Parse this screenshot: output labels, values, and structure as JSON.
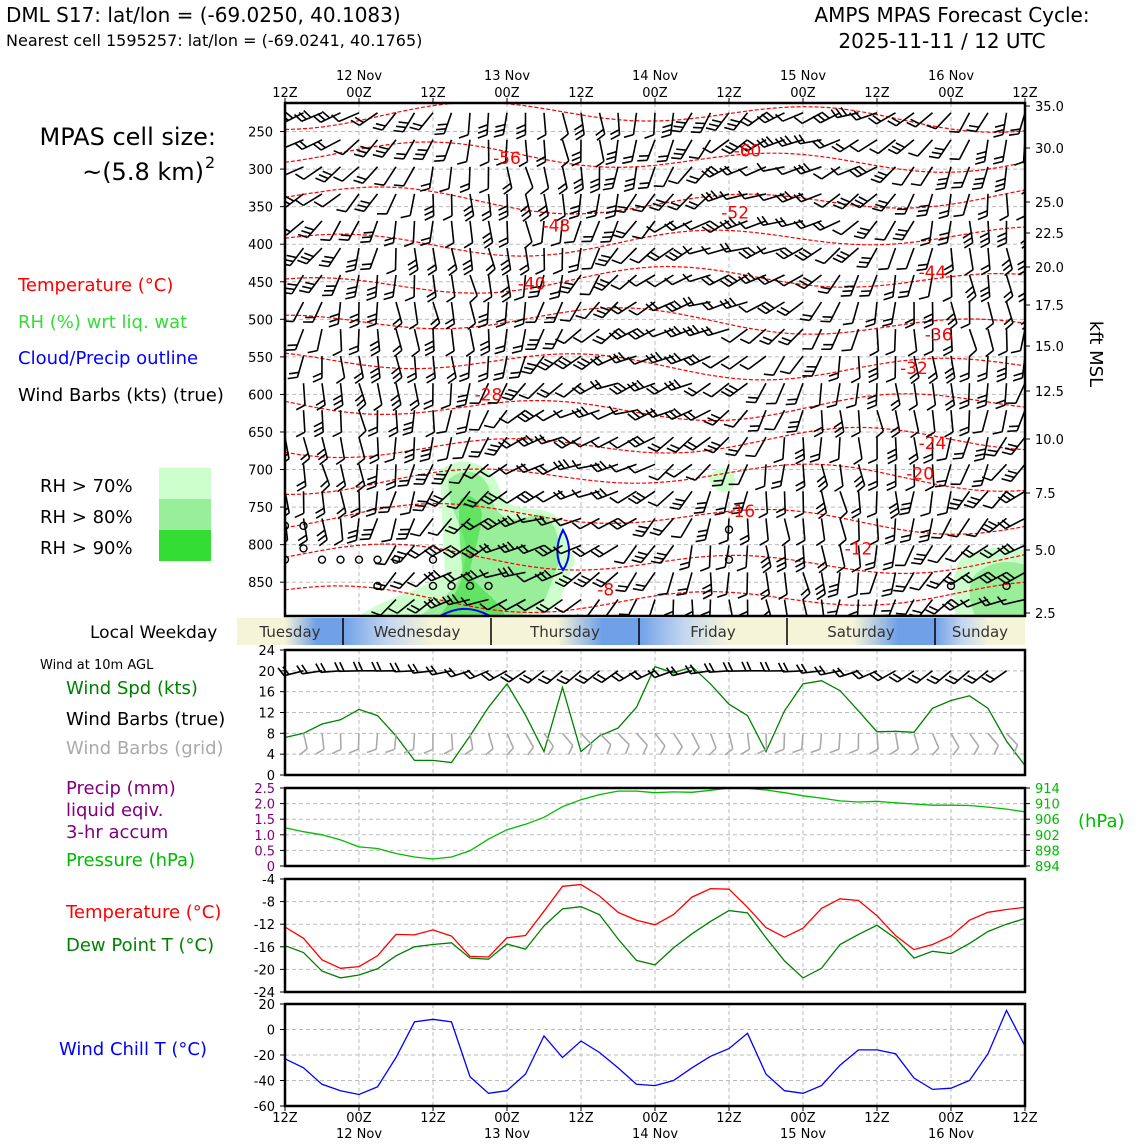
{
  "header": {
    "station": "DML S17: lat/lon = (-69.0250, 40.1083)",
    "nearest": "Nearest cell 1595257: lat/lon = (-69.0241, 40.1765)",
    "cycle_line1": "AMPS MPAS Forecast Cycle:",
    "cycle_line2": "2025-11-11 / 12 UTC"
  },
  "cell_size": {
    "line1": "MPAS cell size:",
    "line2": "~(5.8 km)",
    "sup": "2"
  },
  "legend": {
    "temperature": "Temperature (°C)",
    "rh": "RH (%) wrt liq. wat",
    "cloud": "Cloud/Precip outline",
    "wind": "Wind Barbs (kts) (true)",
    "rh70": "RH > 70%",
    "rh80": "RH > 80%",
    "rh90": "RH > 90%"
  },
  "colors": {
    "temperature": "#ff0000",
    "dewpoint": "#008000",
    "rh": "#33dd33",
    "cloud": "#0000ff",
    "precip": "#800080",
    "pressure": "#00bb00",
    "windchill": "#0000ff",
    "grid_barb": "#aaaaaa",
    "rh70": "#ccffcc",
    "rh80": "#99ee99",
    "rh90": "#33dd33",
    "weekday_blue": "#6fa0e8",
    "weekday_cream": "#f6f4d8"
  },
  "time_axis": {
    "ticks": [
      "12Z",
      "00Z",
      "12Z",
      "00Z",
      "12Z",
      "00Z",
      "12Z",
      "00Z",
      "12Z",
      "00Z",
      "12Z"
    ],
    "dates": [
      "12 Nov",
      "13 Nov",
      "14 Nov",
      "15 Nov",
      "16 Nov"
    ]
  },
  "weekday": {
    "label": "Local Weekday",
    "days": [
      "Tuesday",
      "Wednesday",
      "Thursday",
      "Friday",
      "Saturday",
      "Sunday"
    ]
  },
  "panel_labels": {
    "wind10m": "Wind at 10m AGL",
    "windspd": "Wind Spd (kts)",
    "windbarbs": "Wind Barbs (true)",
    "gridbarbs": "Wind Barbs (grid)",
    "precip1": "Precip (mm)",
    "precip2": "liquid eqiv.",
    "precip3": "3-hr accum",
    "pressure": "Pressure (hPa)",
    "hpa_unit": "(hPa)",
    "temp": "Temperature (°C)",
    "dew": "Dew Point T (°C)",
    "windchill": "Wind Chill T (°C)",
    "kft": "kft MSL"
  },
  "chart_data": [
    {
      "type": "contour",
      "name": "upper-air",
      "x_range_hours": [
        0,
        120
      ],
      "pressure_ticks": [
        250,
        300,
        350,
        400,
        450,
        500,
        550,
        600,
        650,
        700,
        750,
        800,
        850
      ],
      "kft_ticks": [
        "35.0",
        "30.0",
        "25.0",
        "22.5",
        "20.0",
        "17.5",
        "15.0",
        "12.5",
        "10.0",
        "7.5",
        "5.0",
        "2.5"
      ],
      "temperature_contour_labels": [
        {
          "value": "-56",
          "t": 36,
          "p": 285
        },
        {
          "value": "-60",
          "t": 75,
          "p": 275
        },
        {
          "value": "-52",
          "t": 73,
          "p": 358
        },
        {
          "value": "-48",
          "t": 44,
          "p": 375
        },
        {
          "value": "-44",
          "t": 105,
          "p": 437
        },
        {
          "value": "-40",
          "t": 40,
          "p": 452
        },
        {
          "value": "-36",
          "t": 106,
          "p": 520
        },
        {
          "value": "-32",
          "t": 102,
          "p": 565
        },
        {
          "value": "-28",
          "t": 33,
          "p": 600
        },
        {
          "value": "-24",
          "t": 105,
          "p": 665
        },
        {
          "value": "-20",
          "t": 103,
          "p": 705
        },
        {
          "value": "-16",
          "t": 74,
          "p": 755
        },
        {
          "value": "-12",
          "t": 93,
          "p": 805
        },
        {
          "value": "-8",
          "t": 52,
          "p": 860
        }
      ]
    },
    {
      "type": "line",
      "name": "wind10m",
      "ylim": [
        0,
        24
      ],
      "yticks": [
        "0",
        "4",
        "8",
        "12",
        "16",
        "20",
        "24"
      ],
      "series": [
        {
          "x": [
            0,
            3,
            6,
            9,
            12,
            15,
            18,
            21,
            24,
            27,
            30,
            33,
            36,
            39,
            42,
            45,
            48,
            51,
            54,
            57,
            60,
            63,
            66,
            69,
            72,
            75,
            78,
            81,
            84,
            87,
            90,
            93,
            96,
            99,
            102,
            105,
            108,
            111,
            114,
            117,
            120
          ],
          "values": [
            7.2,
            8,
            9.8,
            10.6,
            12.6,
            11.4,
            7.5,
            2.8,
            2.8,
            2.4,
            7.5,
            13,
            17.5,
            11.5,
            4.5,
            16.8,
            4.5,
            7.5,
            9,
            13,
            20.8,
            19.6,
            20.8,
            17.5,
            13.6,
            11.4,
            4.5,
            12.3,
            17.5,
            18.1,
            16.2,
            12.3,
            8.3,
            8.4,
            8.2,
            12.8,
            14.3,
            15.2,
            12.8,
            6.5,
            1.8
          ]
        },
        {
          "x": [
            0,
            120
          ],
          "values": [
            6.5,
            6.5
          ]
        }
      ]
    },
    {
      "type": "line",
      "name": "pressure",
      "y2lim": [
        894,
        914
      ],
      "y2ticks": [
        "894",
        "898",
        "902",
        "906",
        "910",
        "914"
      ],
      "ylim": [
        0,
        2.5
      ],
      "yticks": [
        "0",
        "0.5",
        "1.0",
        "1.5",
        "2.0",
        "2.5"
      ],
      "series": [
        {
          "x": [
            0,
            3,
            6,
            9,
            12,
            15,
            18,
            21,
            24,
            27,
            30,
            33,
            36,
            39,
            42,
            45,
            48,
            51,
            54,
            57,
            60,
            63,
            66,
            69,
            72,
            75,
            78,
            81,
            84,
            87,
            90,
            93,
            96,
            99,
            102,
            105,
            108,
            111,
            114,
            117,
            120
          ],
          "values": [
            903.8,
            902.8,
            902,
            900.7,
            898.9,
            898.5,
            897.2,
            896.3,
            895.8,
            896.3,
            897.9,
            900.9,
            903.3,
            904.7,
            906.5,
            909.2,
            911,
            912.3,
            913.2,
            913.2,
            912.8,
            913,
            912.9,
            913.4,
            914,
            913.9,
            913.5,
            912.8,
            912,
            911.4,
            910.7,
            910.4,
            910.6,
            910.2,
            909.9,
            909.6,
            909.6,
            909.5,
            909.1,
            908.6,
            907.9
          ]
        }
      ]
    },
    {
      "type": "line",
      "name": "temperature",
      "ylim": [
        -24,
        -4
      ],
      "yticks": [
        "-24",
        "-20",
        "-16",
        "-12",
        "-8",
        "-4"
      ],
      "series": [
        {
          "x": [
            0,
            3,
            6,
            9,
            12,
            15,
            18,
            21,
            24,
            27,
            30,
            33,
            36,
            39,
            42,
            45,
            48,
            51,
            54,
            57,
            60,
            63,
            66,
            69,
            72,
            75,
            78,
            81,
            84,
            87,
            90,
            93,
            96,
            99,
            102,
            105,
            108,
            111,
            114,
            117,
            120
          ],
          "values": [
            -12.5,
            -14.5,
            -18.3,
            -19.8,
            -19.5,
            -17.6,
            -13.8,
            -13.9,
            -13,
            -14.1,
            -17.7,
            -17.8,
            -14.4,
            -14,
            -9.7,
            -5.3,
            -5,
            -7,
            -9.9,
            -11.3,
            -12.1,
            -10.3,
            -7.2,
            -5.7,
            -5.8,
            -9,
            -12.6,
            -14.3,
            -12.7,
            -9.2,
            -7.5,
            -7.8,
            -10.5,
            -14,
            -16.5,
            -15.6,
            -14.1,
            -11.3,
            -9.9,
            -9.4,
            -9
          ]
        },
        {
          "x": [
            0,
            3,
            6,
            9,
            12,
            15,
            18,
            21,
            24,
            27,
            30,
            33,
            36,
            39,
            42,
            45,
            48,
            51,
            54,
            57,
            60,
            63,
            66,
            69,
            72,
            75,
            78,
            81,
            84,
            87,
            90,
            93,
            96,
            99,
            102,
            105,
            108,
            111,
            114,
            117,
            120
          ],
          "values": [
            -15.8,
            -17,
            -20.3,
            -21.5,
            -21,
            -19.9,
            -17.6,
            -16,
            -15.6,
            -15.3,
            -18,
            -18.2,
            -15.5,
            -16.4,
            -12.3,
            -9.3,
            -8.9,
            -10.3,
            -14.6,
            -18.4,
            -19.2,
            -16.2,
            -13.7,
            -11.5,
            -9.6,
            -10,
            -14.4,
            -18.5,
            -21.5,
            -19.8,
            -15.6,
            -13.8,
            -12.2,
            -14.5,
            -18,
            -16.8,
            -17.2,
            -15.4,
            -13.3,
            -12,
            -11
          ]
        }
      ]
    },
    {
      "type": "line",
      "name": "windchill",
      "ylim": [
        -60,
        20
      ],
      "yticks": [
        "-60",
        "-40",
        "-20",
        "0",
        "20"
      ],
      "series": [
        {
          "x": [
            0,
            3,
            6,
            9,
            12,
            15,
            18,
            21,
            24,
            27,
            30,
            33,
            36,
            39,
            42,
            45,
            48,
            51,
            54,
            57,
            60,
            63,
            66,
            69,
            72,
            75,
            78,
            81,
            84,
            87,
            90,
            93,
            96,
            99,
            102,
            105,
            108,
            111,
            114,
            117,
            120
          ],
          "values": [
            -23,
            -30,
            -43,
            -48,
            -51,
            -45,
            -22,
            6,
            8,
            6,
            -37,
            -50,
            -48,
            -35,
            -5,
            -22,
            -9,
            -18,
            -30,
            -43,
            -44,
            -40,
            -30,
            -21,
            -15,
            -3,
            -35,
            -48,
            -50,
            -44,
            -28,
            -16,
            -16,
            -19,
            -38,
            -47,
            -46,
            -40,
            -19,
            15,
            -13
          ]
        }
      ]
    }
  ]
}
